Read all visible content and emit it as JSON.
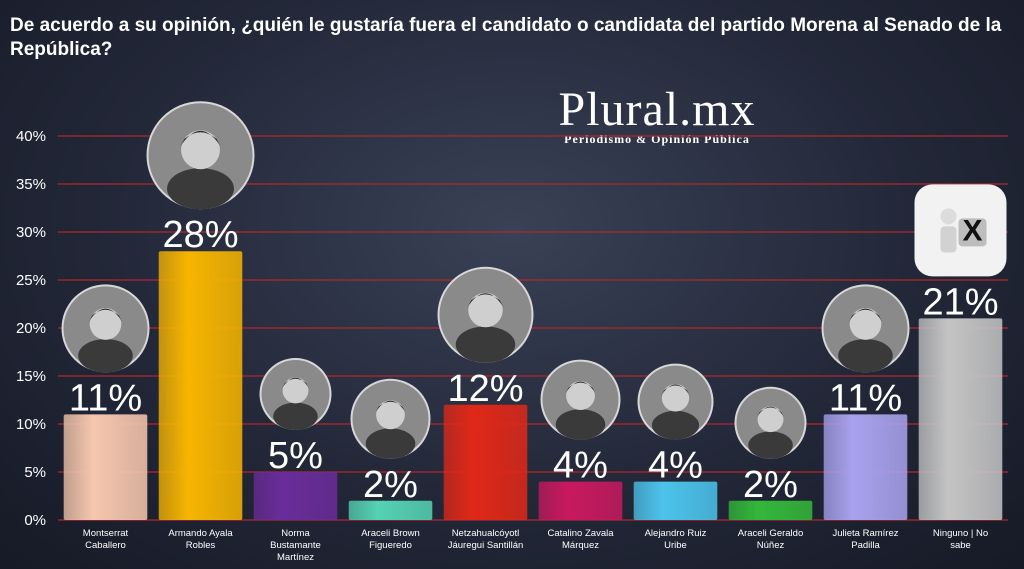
{
  "question": "De acuerdo a su opinión, ¿quién le gustaría fuera el candidato o candidata del partido Morena al Senado de la República?",
  "brand": {
    "name": "Plural.mx",
    "tagline": "Periodismo & Opinión Pública"
  },
  "chart_data": {
    "type": "bar",
    "title": "De acuerdo a su opinión, ¿quién le gustaría fuera el candidato o candidata del partido Morena al Senado de la República?",
    "categories": [
      "Montserrat Caballero",
      "Armando Ayala Robles",
      "Norma Bustamante Martínez",
      "Araceli Brown Figueredo",
      "Netzahualcóyotl Jáuregui Santillán",
      "Catalino Zavala Márquez",
      "Alejandro Ruiz Uribe",
      "Araceli Geraldo Núñez",
      "Julieta Ramírez Padilla",
      "Ninguno | No sabe"
    ],
    "category_lines": [
      [
        "Montserrat",
        "Caballero"
      ],
      [
        "Armando Ayala",
        "Robles"
      ],
      [
        "Norma",
        "Bustamante",
        "Martínez"
      ],
      [
        "Araceli Brown",
        "Figueredo"
      ],
      [
        "Netzahualcóyotl",
        "Jáuregui Santillán"
      ],
      [
        "Catalino Zavala",
        "Márquez"
      ],
      [
        "Alejandro Ruiz",
        "Uribe"
      ],
      [
        "Araceli Geraldo",
        "Núñez"
      ],
      [
        "Julieta Ramírez",
        "Padilla"
      ],
      [
        "Ninguno | No",
        "sabe"
      ]
    ],
    "values": [
      11,
      28,
      5,
      2,
      12,
      4,
      4,
      2,
      11,
      21
    ],
    "value_labels": [
      "11%",
      "28%",
      "5%",
      "2%",
      "12%",
      "4%",
      "4%",
      "2%",
      "11%",
      "21%"
    ],
    "colors": [
      "#f6c7ae",
      "#f7b500",
      "#6a2c9a",
      "#55d2b4",
      "#e02818",
      "#c8195f",
      "#4cc3ec",
      "#33b83a",
      "#a9a2ee",
      "#c4c4c4"
    ],
    "yticks": [
      "0%",
      "5%",
      "10%",
      "15%",
      "20%",
      "25%",
      "30%",
      "35%",
      "40%"
    ],
    "ylim": [
      0,
      40
    ],
    "grid": true,
    "grid_color": "#b3262a"
  }
}
